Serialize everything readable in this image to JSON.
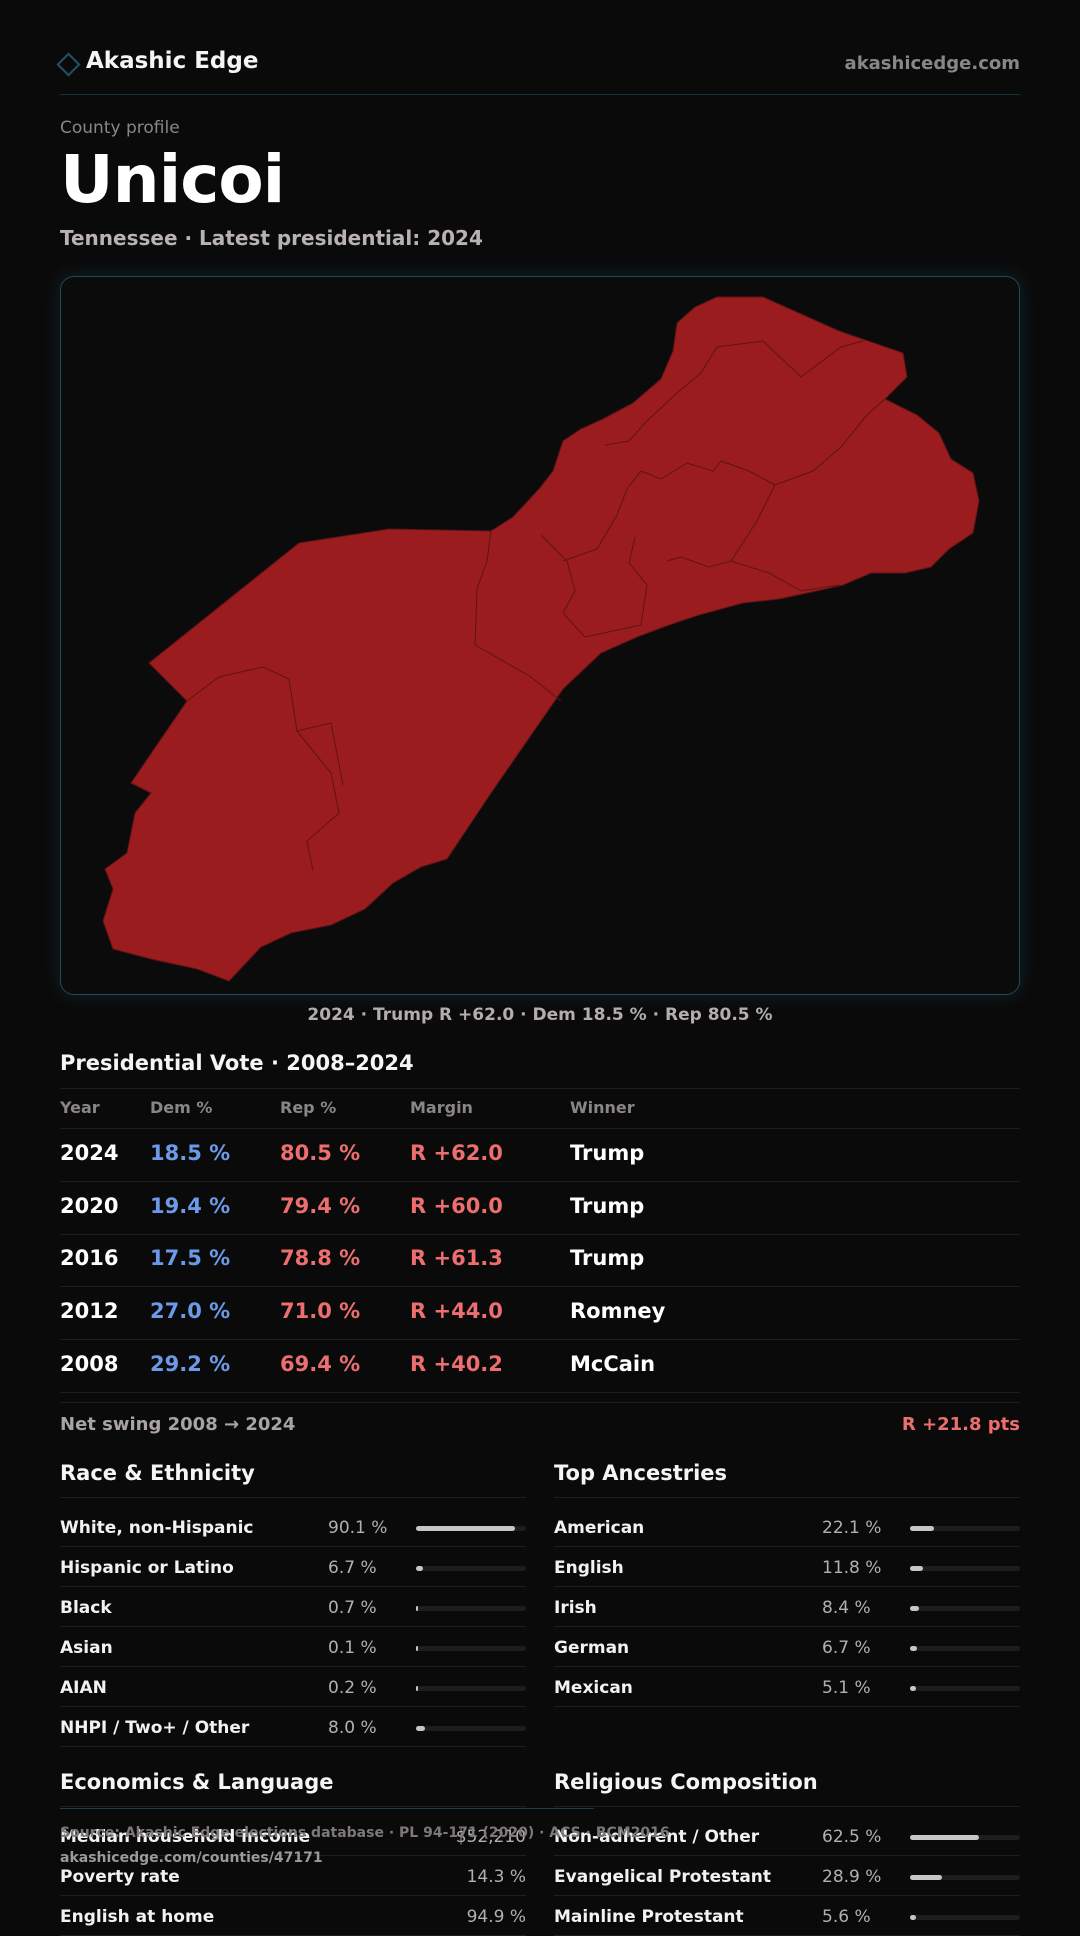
{
  "header": {
    "brand": "Akashic Edge",
    "url": "akashicedge.com"
  },
  "page": {
    "kicker": "County profile",
    "title": "Unicoi",
    "subtitle": "Tennessee · Latest presidential: 2024"
  },
  "map": {
    "caption": "2024 · Trump R +62.0 · Dem 18.5 % · Rep 80.5 %",
    "fill_color": "#9a1c1e",
    "border_color": "#5e1416"
  },
  "vote": {
    "title": "Presidential Vote · 2008–2024",
    "headers": [
      "Year",
      "Dem %",
      "Rep %",
      "Margin",
      "Winner"
    ],
    "rows": [
      {
        "year": "2024",
        "dem": "18.5 %",
        "rep": "80.5 %",
        "margin": "R +62.0",
        "winner": "Trump"
      },
      {
        "year": "2020",
        "dem": "19.4 %",
        "rep": "79.4 %",
        "margin": "R +60.0",
        "winner": "Trump"
      },
      {
        "year": "2016",
        "dem": "17.5 %",
        "rep": "78.8 %",
        "margin": "R +61.3",
        "winner": "Trump"
      },
      {
        "year": "2012",
        "dem": "27.0 %",
        "rep": "71.0 %",
        "margin": "R +44.0",
        "winner": "Romney"
      },
      {
        "year": "2008",
        "dem": "29.2 %",
        "rep": "69.4 %",
        "margin": "R +40.2",
        "winner": "McCain"
      }
    ],
    "swing_label": "Net swing 2008 → 2024",
    "swing_value": "R +21.8 pts"
  },
  "race": {
    "title": "Race & Ethnicity",
    "rows": [
      {
        "label": "White, non-Hispanic",
        "pct": "90.1 %",
        "fraction": 0.901
      },
      {
        "label": "Hispanic or Latino",
        "pct": "6.7 %",
        "fraction": 0.067
      },
      {
        "label": "Black",
        "pct": "0.7 %",
        "fraction": 0.007
      },
      {
        "label": "Asian",
        "pct": "0.1 %",
        "fraction": 0.001
      },
      {
        "label": "AIAN",
        "pct": "0.2 %",
        "fraction": 0.002
      },
      {
        "label": "NHPI / Two+ / Other",
        "pct": "8.0 %",
        "fraction": 0.08
      }
    ]
  },
  "ancestry": {
    "title": "Top Ancestries",
    "rows": [
      {
        "label": "American",
        "pct": "22.1 %",
        "fraction": 0.221
      },
      {
        "label": "English",
        "pct": "11.8 %",
        "fraction": 0.118
      },
      {
        "label": "Irish",
        "pct": "8.4 %",
        "fraction": 0.084
      },
      {
        "label": "German",
        "pct": "6.7 %",
        "fraction": 0.067
      },
      {
        "label": "Mexican",
        "pct": "5.1 %",
        "fraction": 0.051
      }
    ]
  },
  "economics": {
    "title": "Economics & Language",
    "rows": [
      {
        "label": "Median household income",
        "value": "$52,210"
      },
      {
        "label": "Poverty rate",
        "value": "14.3 %"
      },
      {
        "label": "English at home",
        "value": "94.9 %"
      }
    ]
  },
  "religion": {
    "title": "Religious Composition",
    "rows": [
      {
        "label": "Non-adherent / Other",
        "pct": "62.5 %",
        "fraction": 0.625
      },
      {
        "label": "Evangelical Protestant",
        "pct": "28.9 %",
        "fraction": 0.289
      },
      {
        "label": "Mainline Protestant",
        "pct": "5.6 %",
        "fraction": 0.056
      }
    ]
  },
  "footer": {
    "source": "Source: Akashic Edge elections database · PL 94-171 (2020) · ACS · BCM2016",
    "link": "akashicedge.com/counties/47171"
  }
}
